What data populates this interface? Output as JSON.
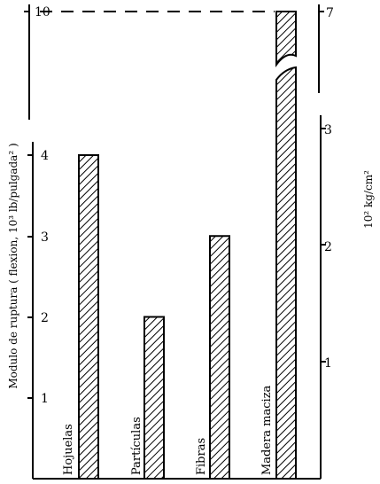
{
  "chart_data": {
    "type": "bar",
    "categories": [
      "Hojuelas",
      "Partículas",
      "Fibras",
      "Madera maciza"
    ],
    "values": [
      4,
      2,
      3,
      10
    ],
    "ylabel": "Modulo de ruptura ( flexion, 10³ lb/pulgada² )",
    "ylabel_right": "10² kg/cm²",
    "ylim": [
      0,
      10
    ],
    "left_ticks": [
      "1",
      "2",
      "3",
      "4",
      "10"
    ],
    "right_ticks": [
      "1",
      "2",
      "3",
      "7"
    ],
    "axis_break": true,
    "reference_line_at": 10,
    "bar_pattern": "diagonal-hatch",
    "grid": false,
    "legend": "none"
  }
}
